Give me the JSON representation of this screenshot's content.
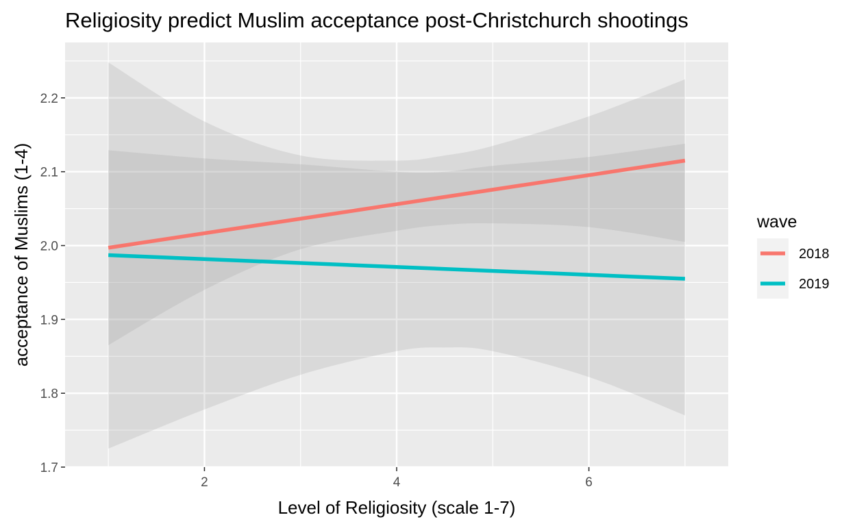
{
  "chart_data": {
    "type": "line",
    "title": "Religiosity predict Muslim acceptance post-Christchurch shootings",
    "xlabel": "Level of Religiosity (scale 1-7)",
    "ylabel": "acceptance of Muslims (1-4)",
    "xlim": [
      0.55,
      7.45
    ],
    "ylim": [
      1.7,
      2.275
    ],
    "x_ticks": [
      2,
      4,
      6
    ],
    "x_minor_ticks": [
      1,
      3,
      5,
      7
    ],
    "y_ticks": [
      1.7,
      1.8,
      1.9,
      2.0,
      2.1,
      2.2
    ],
    "y_minor_ticks": [
      1.75,
      1.85,
      1.95,
      2.05,
      2.15,
      2.25
    ],
    "grid": true,
    "legend": {
      "title": "wave",
      "position": "right"
    },
    "series": [
      {
        "name": "2018",
        "color": "#F8766D",
        "x": [
          1,
          7
        ],
        "y": [
          1.997,
          2.115
        ],
        "ribbon": {
          "x": [
            1,
            2,
            3,
            4,
            4.5,
            5,
            6,
            7
          ],
          "lower": [
            1.865,
            1.94,
            1.995,
            2.02,
            2.028,
            2.03,
            2.025,
            2.005
          ],
          "upper": [
            2.129,
            2.118,
            2.11,
            2.1,
            2.1,
            2.108,
            2.12,
            2.138
          ]
        }
      },
      {
        "name": "2019",
        "color": "#00BFC4",
        "x": [
          1,
          7
        ],
        "y": [
          1.987,
          1.955
        ],
        "ribbon": {
          "x": [
            1,
            2,
            3,
            4,
            4.5,
            5,
            6,
            7
          ],
          "lower": [
            1.725,
            1.778,
            1.825,
            1.857,
            1.862,
            1.857,
            1.822,
            1.77
          ],
          "upper": [
            2.248,
            2.168,
            2.122,
            2.115,
            2.122,
            2.135,
            2.175,
            2.225
          ]
        }
      }
    ]
  }
}
